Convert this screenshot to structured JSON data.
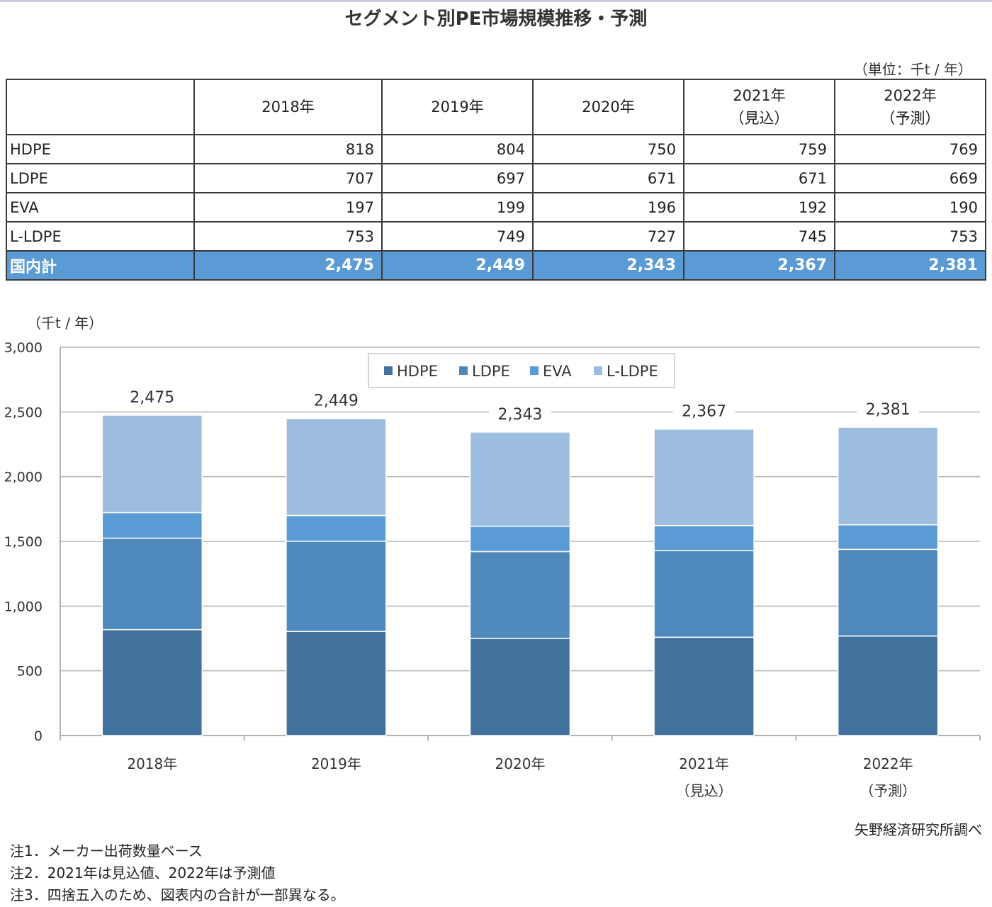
{
  "title": "セグメント別PE市場規模推移・予測",
  "unit_note": "（単位：千t / 年）",
  "table": {
    "columns": [
      {
        "line1": "2018年",
        "line2": ""
      },
      {
        "line1": "2019年",
        "line2": ""
      },
      {
        "line1": "2020年",
        "line2": ""
      },
      {
        "line1": "2021年",
        "line2": "（見込）"
      },
      {
        "line1": "2022年",
        "line2": "（予測）"
      }
    ],
    "rows": [
      {
        "label": "HDPE",
        "values": [
          "818",
          "804",
          "750",
          "759",
          "769"
        ]
      },
      {
        "label": "LDPE",
        "values": [
          "707",
          "697",
          "671",
          "671",
          "669"
        ]
      },
      {
        "label": "EVA",
        "values": [
          "197",
          "199",
          "196",
          "192",
          "190"
        ]
      },
      {
        "label": "L-LDPE",
        "values": [
          "753",
          "749",
          "727",
          "745",
          "753"
        ]
      }
    ],
    "total": {
      "label": "国内計",
      "values": [
        "2,475",
        "2,449",
        "2,343",
        "2,367",
        "2,381"
      ]
    }
  },
  "chart_data": {
    "type": "bar",
    "stacked": true,
    "ylabel": "（千t / 年）",
    "ylim": [
      0,
      3000
    ],
    "yticks": [
      "0",
      "500",
      "1,000",
      "1,500",
      "2,000",
      "2,500",
      "3,000"
    ],
    "categories": [
      {
        "line1": "2018年",
        "line2": ""
      },
      {
        "line1": "2019年",
        "line2": ""
      },
      {
        "line1": "2020年",
        "line2": ""
      },
      {
        "line1": "2021年",
        "line2": "（見込）"
      },
      {
        "line1": "2022年",
        "line2": "（予測）"
      }
    ],
    "series": [
      {
        "name": "HDPE",
        "color": "#41719c",
        "values": [
          818,
          804,
          750,
          759,
          769
        ]
      },
      {
        "name": "LDPE",
        "color": "#4f88bb",
        "values": [
          707,
          697,
          671,
          671,
          669
        ]
      },
      {
        "name": "EVA",
        "color": "#5b9bd5",
        "values": [
          197,
          199,
          196,
          192,
          190
        ]
      },
      {
        "name": "L-LDPE",
        "color": "#9dbde0",
        "values": [
          753,
          749,
          727,
          745,
          753
        ]
      }
    ],
    "totals": [
      "2,475",
      "2,449",
      "2,343",
      "2,367",
      "2,381"
    ],
    "total_values": [
      2475,
      2449,
      2343,
      2367,
      2381
    ],
    "grid": true,
    "legend": "top-center"
  },
  "credit": "矢野経済研究所調べ",
  "notes": [
    "注1．メーカー出荷数量ベース",
    "注2．2021年は見込値、2022年は予測値",
    "注3．四捨五入のため、図表内の合計が一部異なる。"
  ]
}
